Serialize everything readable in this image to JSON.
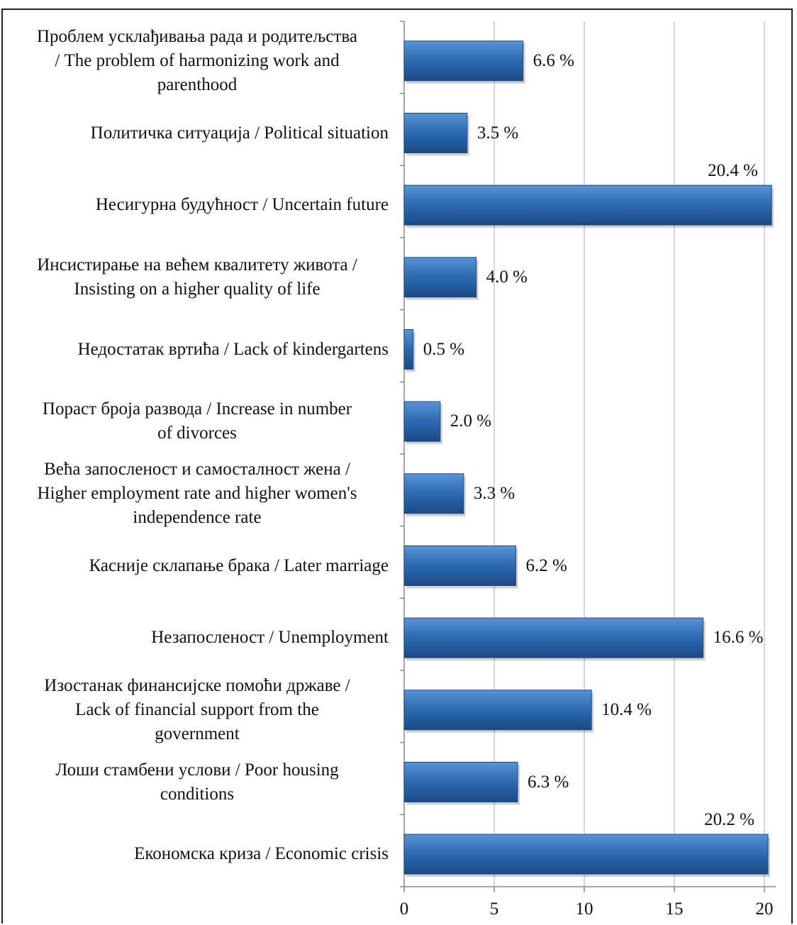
{
  "chart_data": {
    "type": "bar",
    "orientation": "horizontal",
    "categories": [
      "Проблем усклађивања рада и родитељства\n/ The problem of harmonizing work and\nparenthood",
      "Политичка ситуација / Political situation",
      "Несигурна будућност / Uncertain future",
      "Инсистирање на већем квалитету живота /\nInsisting on a higher quality of life",
      "Недостатак вртића / Lack of kindergartens",
      "Пораст броја развода / Increase in number\nof divorces",
      "Већа запосленост и самосталност жена /\nHigher employment rate and higher women's\nindependence rate",
      "Касније склапање брака / Later marriage",
      "Незапосленост / Unemployment",
      "Изостанак финансијске помоћи државе /\nLack of financial support from the\ngovernment",
      "Лоши стамбени услови / Poor housing\nconditions",
      "Економска криза  / Economic crisis"
    ],
    "values": [
      6.6,
      3.5,
      20.4,
      4.0,
      0.5,
      2.0,
      3.3,
      6.2,
      16.6,
      10.4,
      6.3,
      20.2
    ],
    "data_labels": [
      "6.6 %",
      "3.5 %",
      "20.4 %",
      "4.0 %",
      "0.5 %",
      "2.0 %",
      "3.3 %",
      "6.2 %",
      "16.6 %",
      "10.4 %",
      "6.3 %",
      "20.2 %"
    ],
    "xticks": [
      "0",
      "5",
      "10",
      "15",
      "20"
    ],
    "xlim": [
      0,
      20.5
    ],
    "grid": true,
    "bar_color": "#2e6db4",
    "bar_color_dark": "#1c4a85",
    "bar_color_light": "#5b94d6"
  }
}
